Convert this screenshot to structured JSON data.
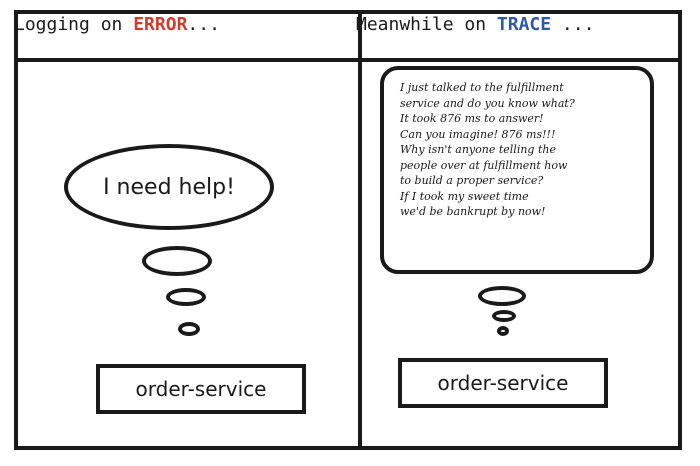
{
  "left_panel": {
    "caption_prefix": "Logging on",
    "caption_level": "ERROR",
    "caption_suffix": "...",
    "thought": "I need help!",
    "service": "order-service"
  },
  "right_panel": {
    "caption_prefix": "Meanwhile on",
    "caption_level": "TRACE",
    "caption_suffix": "...",
    "speech_lines": [
      "I just talked to the fulfillment",
      "service and do you know what?",
      "It took 876 ms to answer!",
      "Can you imagine! 876 ms!!!",
      "Why isn't anyone telling the",
      "people over at fulfillment how",
      "to build a proper service?",
      "If I took my sweet time",
      "we'd be bankrupt by now!"
    ],
    "service": "order-service"
  },
  "colors": {
    "error": "#d23a2a",
    "trace": "#2f58a8",
    "ink": "#1a1a1a"
  }
}
